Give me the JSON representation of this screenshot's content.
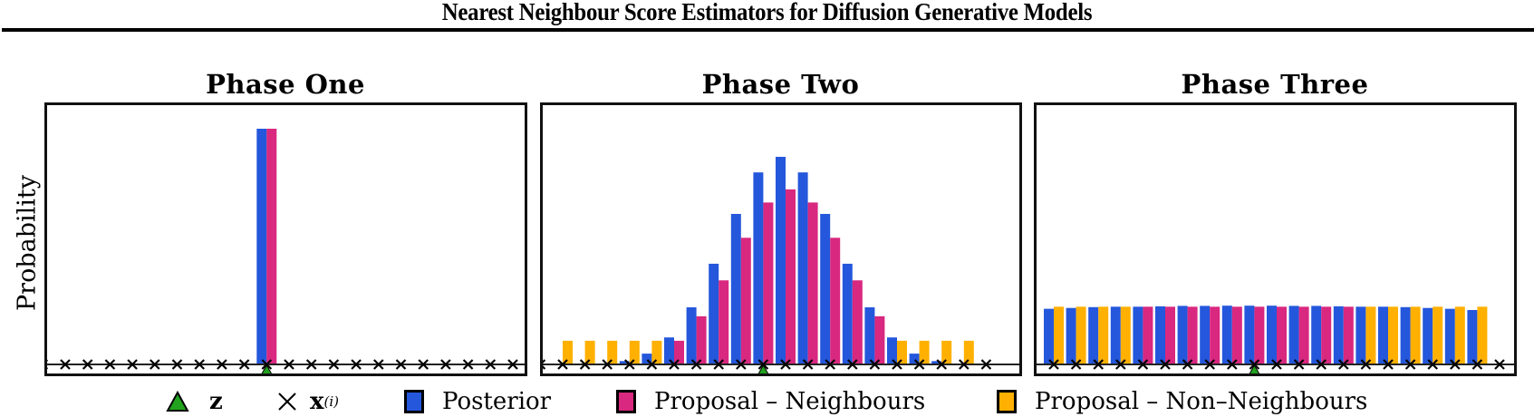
{
  "header": {
    "title": "Nearest Neighbour Score Estimators for Diffusion Generative Models"
  },
  "colors": {
    "posterior": "#2457dc",
    "neighbours": "#d9287f",
    "non_neighbours": "#ffb000",
    "z_marker": "#22a21e",
    "x_marker": "#000000"
  },
  "chart_data": [
    {
      "type": "bar",
      "title": "Phase One",
      "xlabel": "",
      "ylabel": "Probability",
      "grid": false,
      "n_points": 20,
      "z_index": 9,
      "categories": [
        "x1",
        "x2",
        "x3",
        "x4",
        "x5",
        "x6",
        "x7",
        "x8",
        "x9",
        "x10",
        "x11",
        "x12",
        "x13",
        "x14",
        "x15",
        "x16",
        "x17",
        "x18",
        "x19",
        "x20"
      ],
      "series": [
        {
          "name": "Posterior",
          "values": [
            0,
            0,
            0,
            0,
            0,
            0,
            0,
            0,
            0,
            1.0,
            0,
            0,
            0,
            0,
            0,
            0,
            0,
            0,
            0,
            0
          ]
        },
        {
          "name": "Proposal - Neighbours",
          "values": [
            0,
            0,
            0,
            0,
            0,
            0,
            0,
            0,
            0,
            1.0,
            0,
            0,
            0,
            0,
            0,
            0,
            0,
            0,
            0,
            0
          ]
        },
        {
          "name": "Proposal - Non-Neighbours",
          "values": [
            0,
            0,
            0,
            0,
            0,
            0,
            0,
            0,
            0,
            0,
            0,
            0,
            0,
            0,
            0,
            0,
            0,
            0,
            0,
            0
          ]
        }
      ],
      "neighbour_mask": [
        0,
        0,
        0,
        0,
        0,
        0,
        0,
        0,
        0,
        1,
        0,
        0,
        0,
        0,
        0,
        0,
        0,
        0,
        0,
        0
      ],
      "ylim": [
        0,
        1.08
      ]
    },
    {
      "type": "bar",
      "title": "Phase Two",
      "xlabel": "",
      "ylabel": "",
      "grid": false,
      "n_points": 19,
      "z_index": 9,
      "categories": [
        "x1",
        "x2",
        "x3",
        "x4",
        "x5",
        "x6",
        "x7",
        "x8",
        "x9",
        "x10",
        "x11",
        "x12",
        "x13",
        "x14",
        "x15",
        "x16",
        "x17",
        "x18",
        "x19"
      ],
      "series": [
        {
          "name": "Posterior",
          "values": [
            0,
            0,
            0,
            0.016,
            0.052,
            0.13,
            0.275,
            0.485,
            0.725,
            0.925,
            1.0,
            0.925,
            0.725,
            0.485,
            0.275,
            0.13,
            0.052,
            0.016,
            0
          ]
        },
        {
          "name": "Proposal - Neighbours",
          "values": [
            0,
            0,
            0,
            0,
            0,
            0.114,
            0.232,
            0.405,
            0.61,
            0.78,
            0.843,
            0.78,
            0.61,
            0.405,
            0.232,
            0,
            0,
            0,
            0
          ]
        },
        {
          "name": "Proposal - Non-Neighbours",
          "values": [
            0.114,
            0.114,
            0.114,
            0.114,
            0.114,
            0,
            0,
            0,
            0,
            0,
            0,
            0,
            0,
            0,
            0,
            0.114,
            0.114,
            0.114,
            0.114
          ]
        }
      ],
      "neighbour_mask": [
        0,
        0,
        0,
        0,
        0,
        1,
        1,
        1,
        1,
        1,
        1,
        1,
        1,
        1,
        1,
        0,
        0,
        0,
        0
      ],
      "ylim": [
        0,
        1.14
      ]
    },
    {
      "type": "bar",
      "title": "Phase Three",
      "xlabel": "",
      "ylabel": "",
      "grid": false,
      "n_points": 20,
      "z_index": 9,
      "categories": [
        "x1",
        "x2",
        "x3",
        "x4",
        "x5",
        "x6",
        "x7",
        "x8",
        "x9",
        "x10",
        "x11",
        "x12",
        "x13",
        "x14",
        "x15",
        "x16",
        "x17",
        "x18",
        "x19",
        "x20"
      ],
      "series": [
        {
          "name": "Posterior",
          "values": [
            0.268,
            0.272,
            0.276,
            0.278,
            0.278,
            0.28,
            0.282,
            0.282,
            0.283,
            0.283,
            0.283,
            0.282,
            0.282,
            0.28,
            0.278,
            0.278,
            0.276,
            0.272,
            0.268,
            0.262
          ]
        },
        {
          "name": "Proposal - Neighbours",
          "values": [
            0,
            0,
            0,
            0,
            0.278,
            0.278,
            0.278,
            0.278,
            0.278,
            0.278,
            0.278,
            0.278,
            0.278,
            0.278,
            0,
            0,
            0,
            0,
            0,
            0
          ]
        },
        {
          "name": "Proposal - Non-Neighbours",
          "values": [
            0.278,
            0.278,
            0.278,
            0.278,
            0,
            0,
            0,
            0,
            0,
            0,
            0,
            0,
            0,
            0,
            0.278,
            0.278,
            0.278,
            0.278,
            0.278,
            0.278
          ]
        }
      ],
      "neighbour_mask": [
        0,
        0,
        0,
        0,
        1,
        1,
        1,
        1,
        1,
        1,
        1,
        1,
        1,
        1,
        0,
        0,
        0,
        0,
        0,
        0
      ],
      "ylim": [
        0,
        1.14
      ]
    }
  ],
  "panels": [
    {
      "title": "Phase One"
    },
    {
      "title": "Phase Two"
    },
    {
      "title": "Phase Three"
    }
  ],
  "axes": {
    "ylabel": "Probability"
  },
  "legend": {
    "items": [
      {
        "marker": "triangle-up",
        "label": "z"
      },
      {
        "marker": "x",
        "label": "x",
        "superscript": "(i)"
      },
      {
        "marker": "square",
        "label": "Posterior"
      },
      {
        "marker": "square",
        "label": "Proposal – Neighbours"
      },
      {
        "marker": "square",
        "label": "Proposal – Non–Neighbours"
      }
    ]
  }
}
